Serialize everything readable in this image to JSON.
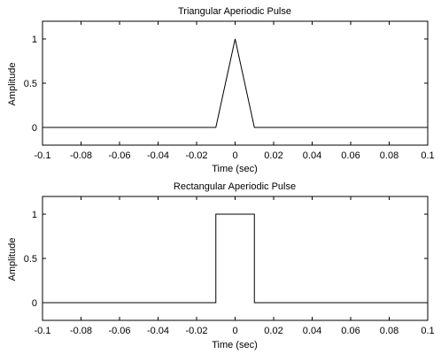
{
  "chart_data": [
    {
      "type": "line",
      "title": "Triangular Aperiodic Pulse",
      "xlabel": "Time (sec)",
      "ylabel": "Amplitude",
      "xlim": [
        -0.1,
        0.1
      ],
      "ylim": [
        -0.2,
        1.2
      ],
      "x_ticks": [
        -0.1,
        -0.08,
        -0.06,
        -0.04,
        -0.02,
        0,
        0.02,
        0.04,
        0.06,
        0.08,
        0.1
      ],
      "x_tick_labels": [
        "-0.1",
        "-0.08",
        "-0.06",
        "-0.04",
        "-0.02",
        "0",
        "0.02",
        "0.04",
        "0.06",
        "0.08",
        "0.1"
      ],
      "y_ticks": [
        0,
        0.5,
        1
      ],
      "y_tick_labels": [
        "0",
        "0.5",
        "1"
      ],
      "grid": false,
      "series": [
        {
          "color": "#000000",
          "x": [
            -0.1,
            -0.01,
            0,
            0.01,
            0.1
          ],
          "y": [
            0,
            0,
            1,
            0,
            0
          ]
        }
      ]
    },
    {
      "type": "line",
      "title": "Rectangular Aperiodic Pulse",
      "xlabel": "Time (sec)",
      "ylabel": "Amplitude",
      "xlim": [
        -0.1,
        0.1
      ],
      "ylim": [
        -0.2,
        1.2
      ],
      "x_ticks": [
        -0.1,
        -0.08,
        -0.06,
        -0.04,
        -0.02,
        0,
        0.02,
        0.04,
        0.06,
        0.08,
        0.1
      ],
      "x_tick_labels": [
        "-0.1",
        "-0.08",
        "-0.06",
        "-0.04",
        "-0.02",
        "0",
        "0.02",
        "0.04",
        "0.06",
        "0.08",
        "0.1"
      ],
      "y_ticks": [
        0,
        0.5,
        1
      ],
      "y_tick_labels": [
        "0",
        "0.5",
        "1"
      ],
      "grid": false,
      "series": [
        {
          "color": "#000000",
          "x": [
            -0.1,
            -0.01,
            -0.01,
            0.01,
            0.01,
            0.1
          ],
          "y": [
            0,
            0,
            1,
            1,
            0,
            0
          ]
        }
      ]
    }
  ]
}
